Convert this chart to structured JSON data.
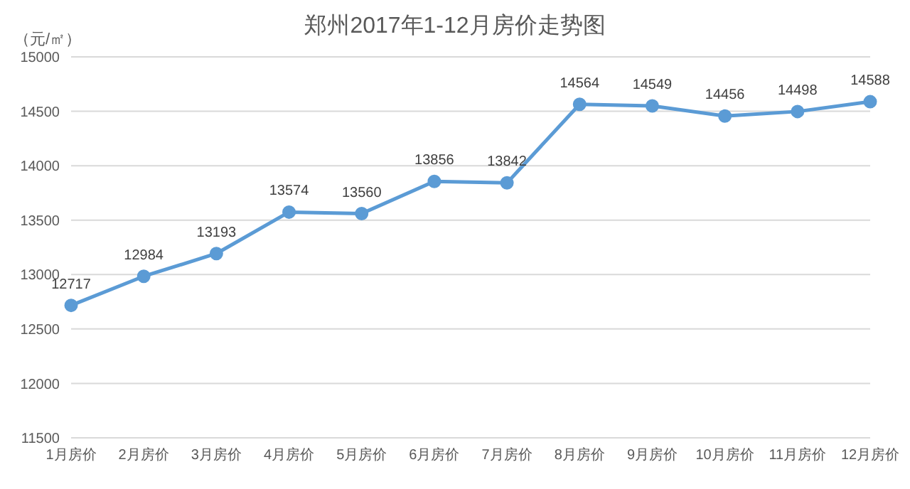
{
  "chart_data": {
    "type": "line",
    "title": "郑州2017年1-12月房价走势图",
    "ylabel": "（元/㎡）",
    "categories": [
      "1月房价",
      "2月房价",
      "3月房价",
      "4月房价",
      "5月房价",
      "6月房价",
      "7月房价",
      "8月房价",
      "9月房价",
      "10月房价",
      "11月房价",
      "12月房价"
    ],
    "series": [
      {
        "color": "#5b9bd5",
        "values": [
          12717,
          12984,
          13193,
          13574,
          13560,
          13856,
          13842,
          14564,
          14549,
          14456,
          14498,
          14588
        ]
      }
    ],
    "ylim": [
      11500,
      15000
    ],
    "yticks": [
      11500,
      12000,
      12500,
      13000,
      13500,
      14000,
      14500,
      15000
    ],
    "grid": "y",
    "legend": false,
    "marker": "circle",
    "line_style": "solid",
    "data_labels": true
  }
}
